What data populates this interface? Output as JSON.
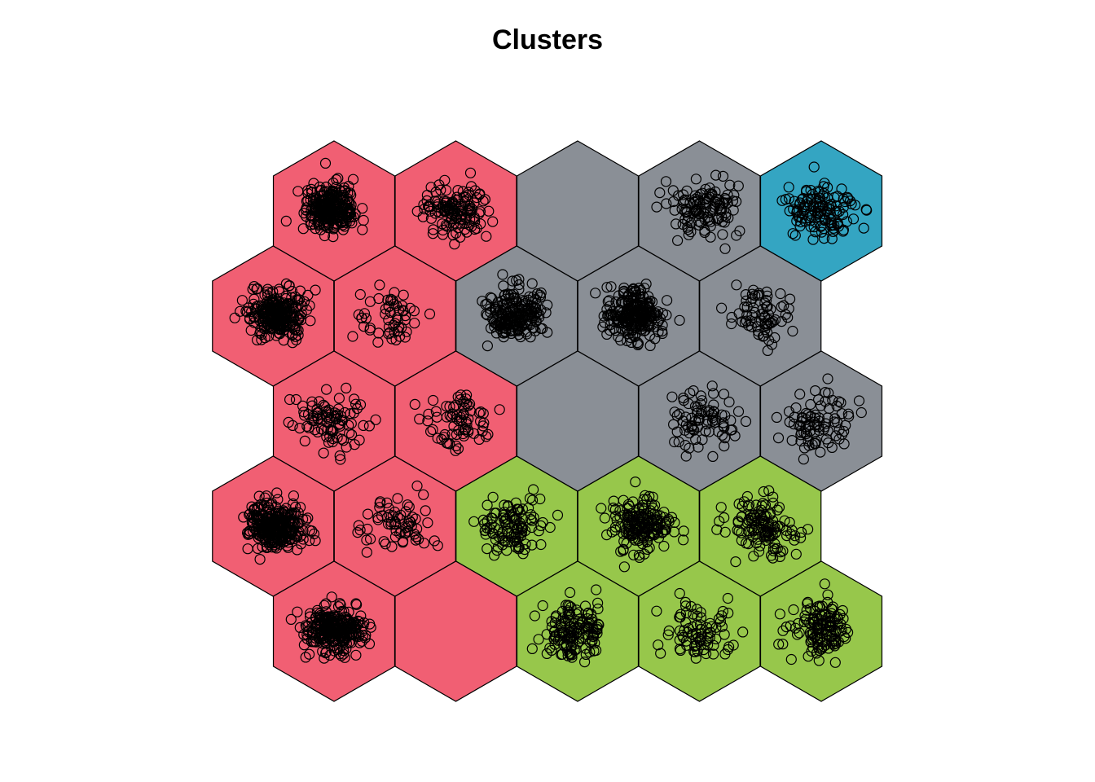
{
  "chart_data": {
    "type": "hexbin-som",
    "title": "Clusters",
    "grid": {
      "rows": 5,
      "cols": 5,
      "topology": "hexagonal"
    },
    "cluster_colors": {
      "red": "#F15F73",
      "gray": "#8A8F96",
      "blue": "#34A5C2",
      "green": "#97C74B"
    },
    "cells": [
      {
        "row": 1,
        "col": 1,
        "cluster": "red",
        "points": 260
      },
      {
        "row": 1,
        "col": 2,
        "cluster": "red",
        "points": 130
      },
      {
        "row": 1,
        "col": 3,
        "cluster": "gray",
        "points": 0
      },
      {
        "row": 1,
        "col": 4,
        "cluster": "gray",
        "points": 120
      },
      {
        "row": 1,
        "col": 5,
        "cluster": "blue",
        "points": 130
      },
      {
        "row": 2,
        "col": 1,
        "cluster": "red",
        "points": 260
      },
      {
        "row": 2,
        "col": 2,
        "cluster": "red",
        "points": 55
      },
      {
        "row": 2,
        "col": 3,
        "cluster": "gray",
        "points": 200
      },
      {
        "row": 2,
        "col": 4,
        "cluster": "gray",
        "points": 240
      },
      {
        "row": 2,
        "col": 5,
        "cluster": "gray",
        "points": 70
      },
      {
        "row": 3,
        "col": 1,
        "cluster": "red",
        "points": 90
      },
      {
        "row": 3,
        "col": 2,
        "cluster": "red",
        "points": 70
      },
      {
        "row": 3,
        "col": 3,
        "cluster": "gray",
        "points": 0
      },
      {
        "row": 3,
        "col": 4,
        "cluster": "gray",
        "points": 80
      },
      {
        "row": 3,
        "col": 5,
        "cluster": "gray",
        "points": 85
      },
      {
        "row": 4,
        "col": 1,
        "cluster": "red",
        "points": 300
      },
      {
        "row": 4,
        "col": 2,
        "cluster": "red",
        "points": 65
      },
      {
        "row": 4,
        "col": 3,
        "cluster": "green",
        "points": 110
      },
      {
        "row": 4,
        "col": 4,
        "cluster": "green",
        "points": 170
      },
      {
        "row": 4,
        "col": 5,
        "cluster": "green",
        "points": 120
      },
      {
        "row": 5,
        "col": 1,
        "cluster": "red",
        "points": 280
      },
      {
        "row": 5,
        "col": 2,
        "cluster": "red",
        "points": 0
      },
      {
        "row": 5,
        "col": 3,
        "cluster": "green",
        "points": 140
      },
      {
        "row": 5,
        "col": 4,
        "cluster": "green",
        "points": 80
      },
      {
        "row": 5,
        "col": 5,
        "cluster": "green",
        "points": 130
      }
    ]
  }
}
